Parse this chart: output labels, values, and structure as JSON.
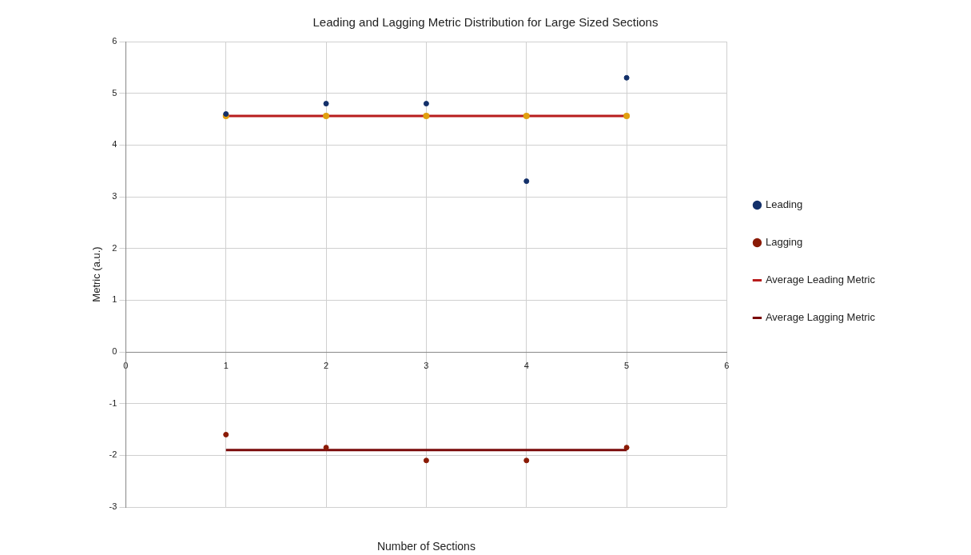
{
  "chart_data": {
    "type": "scatter",
    "title": "Leading and Lagging Metric Distribution for Large Sized Sections",
    "xlabel": "Number of Sections",
    "ylabel": "Metric (a.u.)",
    "x": [
      1,
      2,
      3,
      4,
      5
    ],
    "series": [
      {
        "name": "Leading",
        "marker": "circle",
        "color": "#13306a",
        "values": [
          4.6,
          4.8,
          4.8,
          3.3,
          5.3
        ]
      },
      {
        "name": "Lagging",
        "marker": "circle",
        "color": "#8a1a05",
        "values": [
          -1.6,
          -1.85,
          -2.1,
          -2.1,
          -1.85
        ]
      },
      {
        "name": "Average Leading Metric",
        "type": "line",
        "marker": "circle",
        "color": "#b81c1c",
        "values": [
          4.56,
          4.56,
          4.56,
          4.56,
          4.56
        ]
      },
      {
        "name": "Average Lagging Metric",
        "type": "line",
        "marker": "none",
        "color": "#7a0a0a",
        "values": [
          -1.9,
          -1.9,
          -1.9,
          -1.9,
          -1.9
        ]
      }
    ],
    "xlim": [
      0,
      6
    ],
    "xticks": [
      0,
      1,
      2,
      3,
      4,
      5,
      6
    ],
    "ylim": [
      -3,
      6
    ],
    "yticks": [
      -3,
      -2,
      -1,
      0,
      1,
      2,
      3,
      4,
      5,
      6
    ],
    "grid": true,
    "legend": "right"
  }
}
